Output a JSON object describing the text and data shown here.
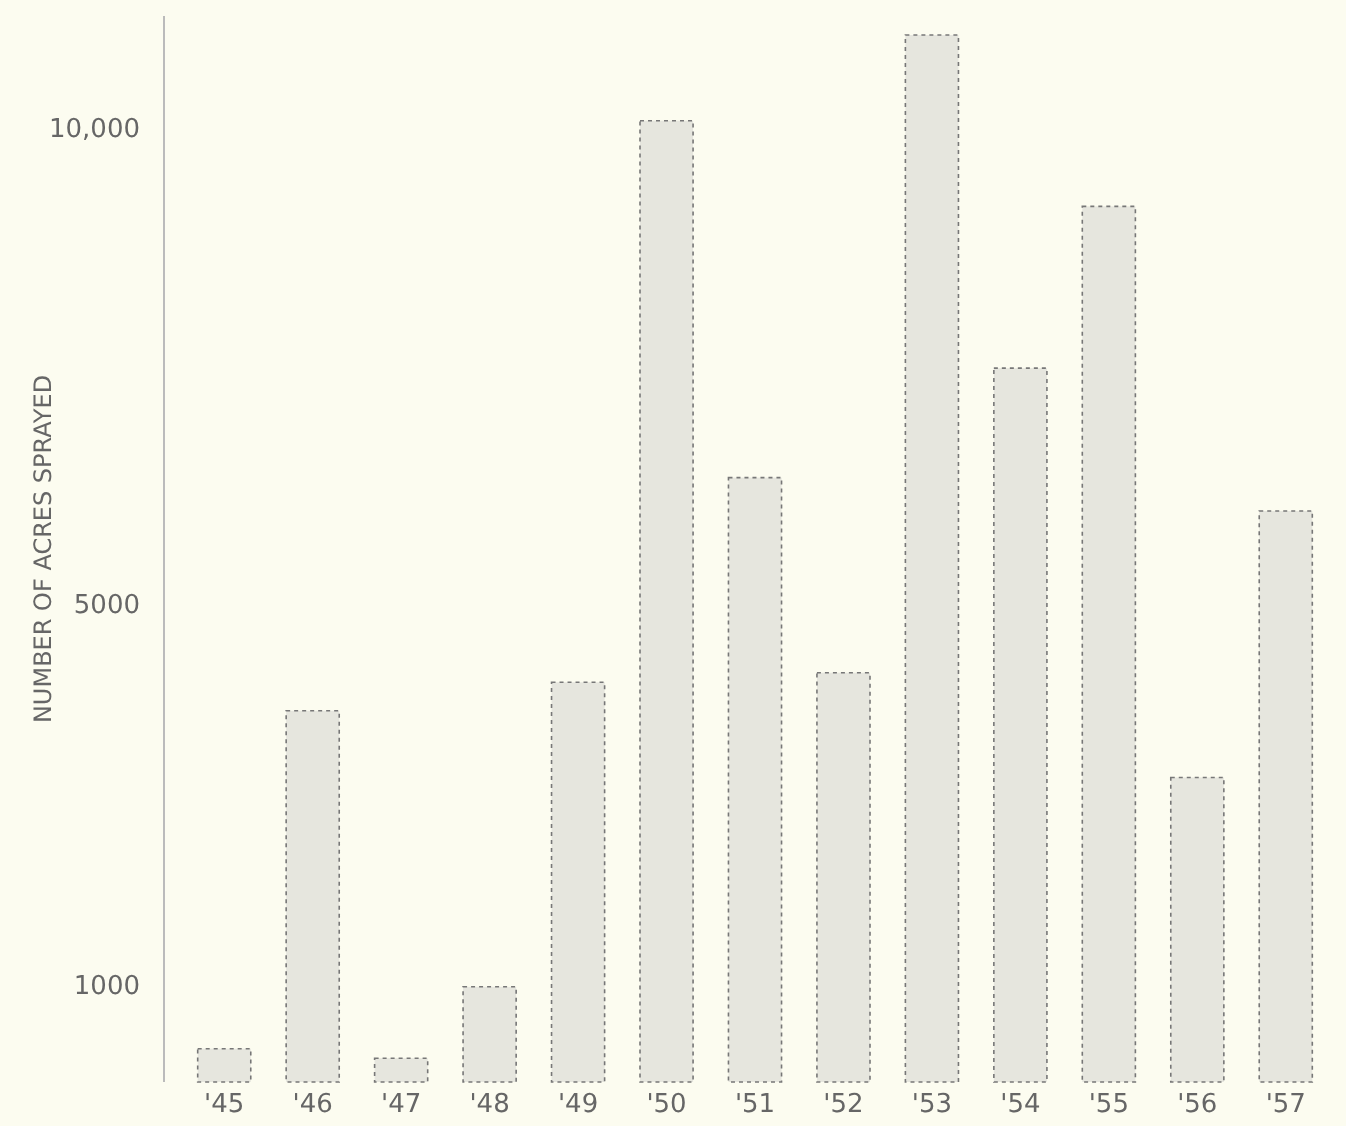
{
  "chart_data": {
    "type": "bar",
    "ylabel": "NUMBER OF ACRES SPRAYED",
    "categories": [
      "'45",
      "'46",
      "'47",
      "'48",
      "'49",
      "'50",
      "'51",
      "'52",
      "'53",
      "'54",
      "'55",
      "'56",
      "'57"
    ],
    "values": [
      350,
      3900,
      250,
      1000,
      4200,
      10100,
      6350,
      4300,
      11000,
      7500,
      9200,
      3200,
      6000
    ],
    "color": "#e6e6de",
    "ylim": [
      0,
      11200
    ],
    "yticks": [
      1000,
      5000,
      {
        "value": 10000,
        "label": "10,000"
      }
    ],
    "grid": false
  }
}
